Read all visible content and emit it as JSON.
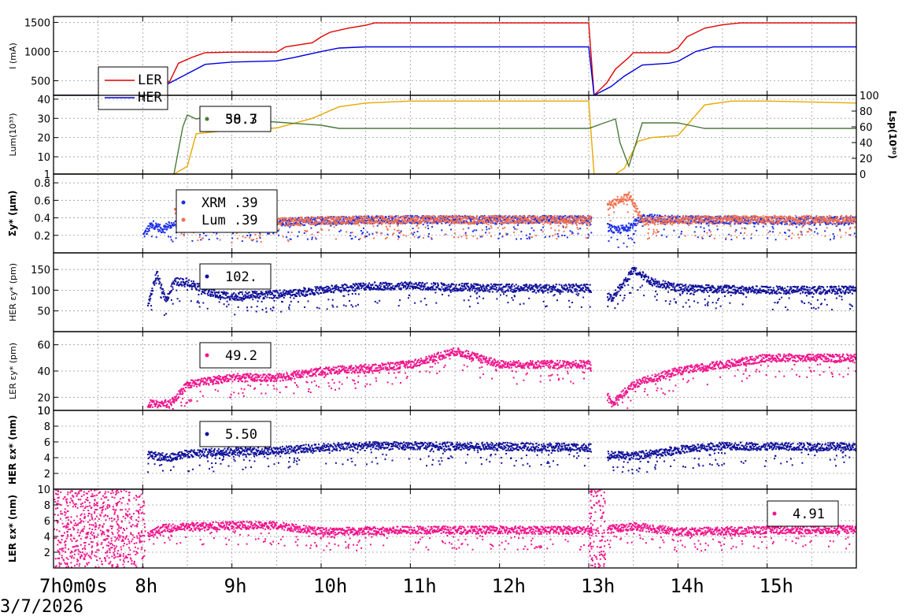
{
  "chart_data": {
    "type": "line",
    "x_axis": {
      "ticks": [
        "7h0m0s",
        "8h",
        "9h",
        "10h",
        "11h",
        "12h",
        "13h",
        "14h",
        "15h"
      ],
      "date": "3/7/2026",
      "range_hours": [
        7.0,
        16.0
      ]
    },
    "panels": [
      {
        "id": "current",
        "ylabel": "I (mA)",
        "yticks": [
          "500",
          "1000",
          "1500"
        ],
        "ylim": [
          250,
          1600
        ],
        "legend": {
          "position": "top-left",
          "entries": [
            {
              "label": "LER",
              "color": "#e00000"
            },
            {
              "label": "HER",
              "color": "#0000dd"
            }
          ]
        },
        "series": [
          {
            "name": "LER",
            "color": "#e00000",
            "style": "line",
            "x": [
              7.0,
              7.95,
              8.0,
              8.3,
              8.4,
              8.55,
              8.7,
              9.0,
              9.5,
              9.6,
              9.9,
              10.0,
              10.1,
              10.3,
              10.5,
              10.6,
              11.0,
              12.0,
              13.0,
              13.06,
              13.2,
              13.3,
              13.45,
              13.5,
              13.9,
              14.0,
              14.1,
              14.3,
              14.5,
              14.7,
              16.0
            ],
            "y": [
              250,
              250,
              480,
              480,
              800,
              900,
              980,
              990,
              990,
              1080,
              1150,
              1250,
              1330,
              1400,
              1450,
              1490,
              1490,
              1490,
              1490,
              250,
              460,
              700,
              900,
              980,
              980,
              1060,
              1250,
              1400,
              1460,
              1490,
              1490
            ]
          },
          {
            "name": "HER",
            "color": "#0000dd",
            "style": "line",
            "x": [
              7.0,
              8.0,
              8.25,
              8.5,
              8.7,
              9.0,
              9.5,
              9.7,
              10.0,
              10.2,
              10.5,
              11.0,
              12.0,
              13.0,
              13.06,
              13.25,
              13.4,
              13.6,
              13.9,
              14.0,
              14.2,
              14.4,
              16.0
            ],
            "y": [
              250,
              250,
              420,
              620,
              780,
              820,
              840,
              900,
              1000,
              1060,
              1080,
              1080,
              1080,
              1080,
              250,
              400,
              580,
              770,
              800,
              830,
              1000,
              1080,
              1080
            ]
          }
        ]
      },
      {
        "id": "luminosity",
        "ylabel": "Lum(10³³)",
        "ylabel_right": "Lsp(10³⁰)",
        "yticks": [
          "1",
          "10",
          "20",
          "30",
          "40"
        ],
        "yticks_right": [
          "0",
          "20",
          "40",
          "60",
          "80",
          "100"
        ],
        "ylim": [
          1,
          42
        ],
        "ylim_right": [
          0,
          100
        ],
        "legend": {
          "position": "top-left",
          "entries": [
            {
              "label": "58.7",
              "color": "#e8a800"
            },
            {
              "label": "30.3",
              "color": "#4a7a3a"
            }
          ]
        },
        "series": [
          {
            "name": "Lum",
            "color": "#e8a800",
            "axis": "left",
            "style": "line",
            "x": [
              7.0,
              8.35,
              8.5,
              8.6,
              9.0,
              9.5,
              9.9,
              10.2,
              10.5,
              11.0,
              12.0,
              13.0,
              13.06,
              13.3,
              13.4,
              13.55,
              13.7,
              14.0,
              14.3,
              14.6,
              15.0,
              16.0
            ],
            "y": [
              1,
              1,
              5,
              22,
              24,
              25,
              30,
              36,
              38,
              39,
              39,
              39,
              1,
              1,
              4,
              18,
              20,
              21,
              37,
              39,
              39,
              38
            ]
          },
          {
            "name": "Lsp",
            "color": "#4a7a3a",
            "axis": "right",
            "style": "line",
            "x": [
              7.0,
              8.35,
              8.45,
              8.5,
              8.6,
              8.7,
              9.0,
              9.5,
              10.0,
              10.2,
              11.0,
              12.0,
              13.0,
              13.3,
              13.35,
              13.45,
              13.6,
              14.0,
              14.3,
              15.0,
              16.0
            ],
            "y": [
              0,
              0,
              60,
              75,
              70,
              72,
              70,
              66,
              62,
              58,
              58,
              58,
              58,
              70,
              40,
              10,
              65,
              65,
              58,
              58,
              58
            ]
          }
        ]
      },
      {
        "id": "sigma_y",
        "ylabel": "Σy* (µm)",
        "yticks": [
          "0.2",
          "0.4",
          "0.6",
          "0.8"
        ],
        "ylim": [
          0.0,
          0.9
        ],
        "legend": {
          "position": "top-left",
          "entries": [
            {
              "label": "XRM  .39",
              "color": "#1b2fe8"
            },
            {
              "label": "Lum  .39",
              "color": "#f07050"
            }
          ]
        },
        "series": [
          {
            "name": "XRM",
            "color": "#1b2fe8",
            "style": "points",
            "x": [
              8.0,
              8.1,
              8.2,
              8.35,
              8.5,
              9.0,
              9.5,
              10.0,
              11.0,
              12.0,
              13.0,
              13.3,
              13.45,
              13.6,
              14.0,
              15.0,
              16.0
            ],
            "y": [
              0.2,
              0.33,
              0.27,
              0.34,
              0.36,
              0.35,
              0.35,
              0.37,
              0.38,
              0.38,
              0.38,
              0.25,
              0.3,
              0.4,
              0.38,
              0.37,
              0.37
            ]
          },
          {
            "name": "Lum",
            "color": "#f07050",
            "style": "points",
            "x": [
              8.35,
              8.5,
              9.0,
              10.0,
              11.0,
              12.0,
              13.0,
              13.3,
              13.45,
              13.6,
              14.0,
              15.0,
              16.0
            ],
            "y": [
              0.5,
              0.35,
              0.34,
              0.37,
              0.38,
              0.38,
              0.38,
              0.6,
              0.65,
              0.36,
              0.38,
              0.38,
              0.38
            ]
          }
        ]
      },
      {
        "id": "her_eps_y",
        "ylabel": "HER εy* (pm)",
        "yticks": [
          "50",
          "100",
          "150"
        ],
        "ylim": [
          0,
          190
        ],
        "legend": {
          "position": "top-left",
          "entries": [
            {
              "label": "102.",
              "color": "#111199"
            }
          ]
        },
        "series": [
          {
            "name": "HER",
            "color": "#111199",
            "style": "points",
            "x": [
              8.05,
              8.15,
              8.25,
              8.35,
              8.5,
              8.8,
              9.0,
              9.5,
              10.0,
              10.5,
              11.0,
              12.0,
              13.0,
              13.25,
              13.5,
              13.7,
              14.0,
              15.0,
              16.0
            ],
            "y": [
              60,
              140,
              75,
              120,
              120,
              90,
              85,
              90,
              100,
              110,
              110,
              105,
              105,
              80,
              150,
              120,
              105,
              100,
              100
            ]
          }
        ]
      },
      {
        "id": "ler_eps_y",
        "ylabel": "LER εy* (pm)",
        "yticks": [
          "10",
          "20",
          "40",
          "60"
        ],
        "ylim": [
          10,
          70
        ],
        "legend": {
          "position": "top-left",
          "entries": [
            {
              "label": "49.2",
              "color": "#f0148c"
            }
          ]
        },
        "series": [
          {
            "name": "LER",
            "color": "#f0148c",
            "style": "points",
            "x": [
              8.05,
              8.3,
              8.5,
              9.0,
              9.5,
              10.0,
              10.5,
              11.0,
              11.5,
              12.0,
              13.0,
              13.25,
              13.5,
              14.0,
              14.5,
              15.0,
              15.5,
              16.0
            ],
            "y": [
              15,
              15,
              30,
              35,
              35,
              40,
              42,
              45,
              55,
              45,
              45,
              15,
              30,
              40,
              45,
              50,
              50,
              50
            ]
          }
        ]
      },
      {
        "id": "her_eps_x",
        "ylabel": "HER εx* (nm)",
        "yticks": [
          "2",
          "4",
          "6",
          "8",
          "10"
        ],
        "ylim": [
          0,
          10
        ],
        "legend": {
          "position": "top-left",
          "entries": [
            {
              "label": "5.50",
              "color": "#111199"
            }
          ]
        },
        "series": [
          {
            "name": "HER",
            "color": "#111199",
            "style": "points",
            "x": [
              8.05,
              8.3,
              8.5,
              9.0,
              9.5,
              10.0,
              10.5,
              11.0,
              12.0,
              13.0,
              13.2,
              13.5,
              14.0,
              14.5,
              15.0,
              16.0
            ],
            "y": [
              4.3,
              4.0,
              4.5,
              4.8,
              4.9,
              5.3,
              5.5,
              5.5,
              5.4,
              5.3,
              4.3,
              4.2,
              5.0,
              5.5,
              5.4,
              5.4
            ]
          }
        ]
      },
      {
        "id": "ler_eps_x",
        "ylabel": "LER εx* (nm)",
        "yticks": [
          "2",
          "4",
          "6",
          "8",
          "10"
        ],
        "ylim": [
          0,
          10
        ],
        "legend": {
          "position": "top-right",
          "entries": [
            {
              "label": "4.91",
              "color": "#f0148c"
            }
          ]
        },
        "series": [
          {
            "name": "LER",
            "color": "#f0148c",
            "style": "points",
            "x": [
              8.05,
              8.2,
              8.6,
              9.0,
              9.5,
              10.0,
              11.0,
              12.0,
              13.0,
              13.3,
              13.5,
              14.0,
              15.0,
              16.0
            ],
            "y": [
              4.0,
              5.0,
              5.3,
              5.4,
              5.4,
              4.6,
              4.8,
              4.8,
              4.8,
              5.0,
              5.3,
              4.6,
              4.8,
              4.9
            ]
          }
        ]
      }
    ]
  }
}
